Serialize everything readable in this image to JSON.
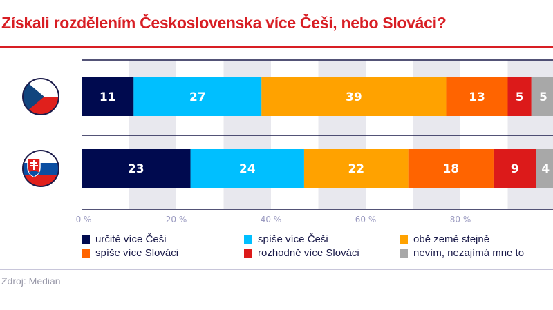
{
  "title": "Získali rozdělením Československa více Češi, nebo Slováci?",
  "source": "Zdroj: Median",
  "chart_data": {
    "type": "bar",
    "orientation": "horizontal-stacked",
    "categories": [
      "Česko",
      "Slovensko"
    ],
    "category_icons": [
      "czech-flag-icon",
      "slovak-flag-icon"
    ],
    "xlim": [
      0,
      100
    ],
    "xticks": [
      "0 %",
      "20 %",
      "40 %",
      "60 %",
      "80 %"
    ],
    "grid": "alternating vertical bands",
    "legend_position": "bottom",
    "series": [
      {
        "name": "určitě více Češi",
        "color": "#000a4f",
        "values": [
          11,
          23
        ]
      },
      {
        "name": "spíše více Češi",
        "color": "#00bfff",
        "values": [
          27,
          24
        ]
      },
      {
        "name": "obě země stejně",
        "color": "#ffa200",
        "values": [
          39,
          22
        ]
      },
      {
        "name": "spíše více Slováci",
        "color": "#ff6400",
        "values": [
          13,
          18
        ]
      },
      {
        "name": "rozhodně více Slováci",
        "color": "#dc1a1a",
        "values": [
          5,
          9
        ]
      },
      {
        "name": "nevím, nezajímá mne to",
        "color": "#a8a8a8",
        "values": [
          5,
          4
        ]
      }
    ]
  }
}
